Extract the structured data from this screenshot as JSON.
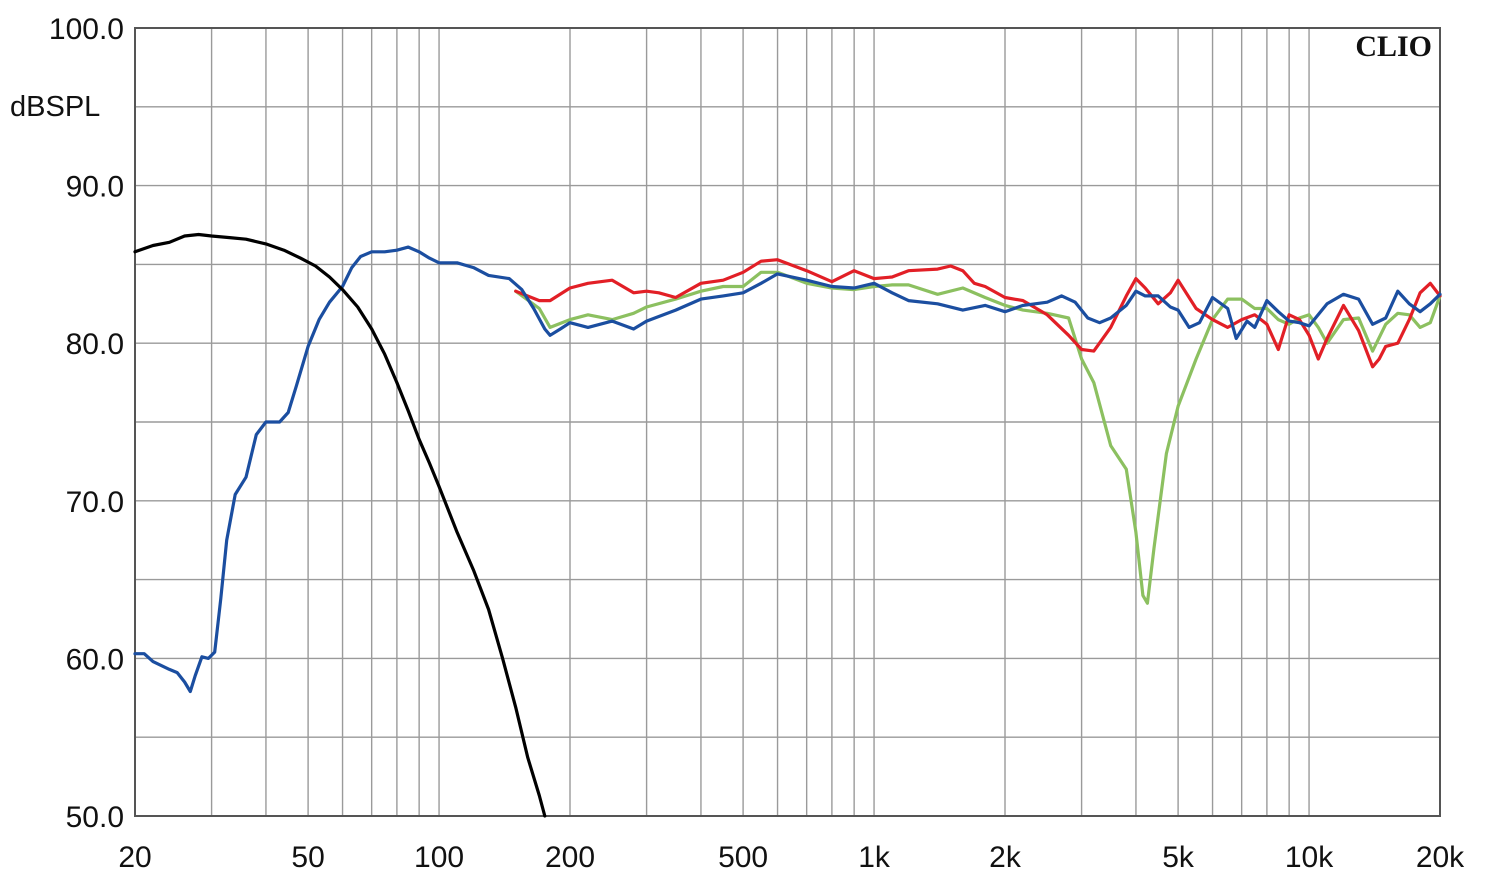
{
  "chart_data": {
    "type": "line",
    "title": "",
    "xlabel": "",
    "ylabel": "dBSPL",
    "brand": "CLIO",
    "xscale": "log",
    "xlim": [
      20,
      20000
    ],
    "ylim": [
      50,
      100
    ],
    "grid": true,
    "legend": "none",
    "x_ticks": [
      {
        "value": 20,
        "label": "20"
      },
      {
        "value": 50,
        "label": "50"
      },
      {
        "value": 100,
        "label": "100"
      },
      {
        "value": 200,
        "label": "200"
      },
      {
        "value": 500,
        "label": "500"
      },
      {
        "value": 1000,
        "label": "1k"
      },
      {
        "value": 2000,
        "label": "2k"
      },
      {
        "value": 5000,
        "label": "5k"
      },
      {
        "value": 10000,
        "label": "10k"
      },
      {
        "value": 20000,
        "label": "20k"
      }
    ],
    "y_ticks": [
      {
        "value": 100,
        "label": "100.0"
      },
      {
        "value": 90,
        "label": "90.0"
      },
      {
        "value": 80,
        "label": "80.0"
      },
      {
        "value": 70,
        "label": "70.0"
      },
      {
        "value": 60,
        "label": "60.0"
      },
      {
        "value": 50,
        "label": "50.0"
      }
    ],
    "series": [
      {
        "color": "#8cc060",
        "points": [
          [
            150,
            83.3
          ],
          [
            170,
            82.2
          ],
          [
            180,
            81.0
          ],
          [
            200,
            81.5
          ],
          [
            220,
            81.8
          ],
          [
            250,
            81.5
          ],
          [
            280,
            81.9
          ],
          [
            300,
            82.3
          ],
          [
            350,
            82.8
          ],
          [
            400,
            83.3
          ],
          [
            450,
            83.6
          ],
          [
            500,
            83.6
          ],
          [
            550,
            84.5
          ],
          [
            600,
            84.5
          ],
          [
            700,
            83.8
          ],
          [
            800,
            83.5
          ],
          [
            900,
            83.4
          ],
          [
            1000,
            83.6
          ],
          [
            1100,
            83.7
          ],
          [
            1200,
            83.7
          ],
          [
            1400,
            83.1
          ],
          [
            1600,
            83.5
          ],
          [
            1800,
            82.9
          ],
          [
            2000,
            82.4
          ],
          [
            2200,
            82.1
          ],
          [
            2500,
            81.9
          ],
          [
            2800,
            81.6
          ],
          [
            3000,
            79.0
          ],
          [
            3200,
            77.5
          ],
          [
            3500,
            73.5
          ],
          [
            3800,
            72.0
          ],
          [
            4000,
            68.0
          ],
          [
            4150,
            64.0
          ],
          [
            4250,
            63.5
          ],
          [
            4400,
            67.0
          ],
          [
            4700,
            73.0
          ],
          [
            5000,
            76.0
          ],
          [
            5500,
            79.0
          ],
          [
            6000,
            81.5
          ],
          [
            6500,
            82.8
          ],
          [
            7000,
            82.8
          ],
          [
            7500,
            82.2
          ],
          [
            8000,
            82.2
          ],
          [
            8500,
            81.5
          ],
          [
            9000,
            81.2
          ],
          [
            9500,
            81.6
          ],
          [
            10000,
            81.8
          ],
          [
            10500,
            81.0
          ],
          [
            11000,
            80.0
          ],
          [
            12000,
            81.5
          ],
          [
            13000,
            81.6
          ],
          [
            14000,
            79.5
          ],
          [
            15000,
            81.2
          ],
          [
            16000,
            81.9
          ],
          [
            17000,
            81.8
          ],
          [
            18000,
            81.0
          ],
          [
            19000,
            81.3
          ],
          [
            20000,
            83.0
          ]
        ]
      },
      {
        "color": "#e21f26",
        "points": [
          [
            150,
            83.3
          ],
          [
            170,
            82.7
          ],
          [
            180,
            82.7
          ],
          [
            200,
            83.5
          ],
          [
            220,
            83.8
          ],
          [
            250,
            84.0
          ],
          [
            280,
            83.2
          ],
          [
            300,
            83.3
          ],
          [
            320,
            83.2
          ],
          [
            350,
            82.9
          ],
          [
            400,
            83.8
          ],
          [
            450,
            84.0
          ],
          [
            500,
            84.5
          ],
          [
            550,
            85.2
          ],
          [
            600,
            85.3
          ],
          [
            700,
            84.6
          ],
          [
            800,
            83.9
          ],
          [
            900,
            84.6
          ],
          [
            1000,
            84.1
          ],
          [
            1100,
            84.2
          ],
          [
            1200,
            84.6
          ],
          [
            1400,
            84.7
          ],
          [
            1500,
            84.9
          ],
          [
            1600,
            84.6
          ],
          [
            1700,
            83.8
          ],
          [
            1800,
            83.6
          ],
          [
            2000,
            82.9
          ],
          [
            2200,
            82.7
          ],
          [
            2500,
            81.8
          ],
          [
            2800,
            80.5
          ],
          [
            3000,
            79.6
          ],
          [
            3200,
            79.5
          ],
          [
            3500,
            81.0
          ],
          [
            3800,
            83.0
          ],
          [
            4000,
            84.1
          ],
          [
            4200,
            83.5
          ],
          [
            4500,
            82.5
          ],
          [
            4800,
            83.2
          ],
          [
            5000,
            84.0
          ],
          [
            5500,
            82.2
          ],
          [
            6000,
            81.5
          ],
          [
            6500,
            81.0
          ],
          [
            7000,
            81.5
          ],
          [
            7500,
            81.8
          ],
          [
            8000,
            81.2
          ],
          [
            8500,
            79.6
          ],
          [
            9000,
            81.8
          ],
          [
            9500,
            81.5
          ],
          [
            10000,
            80.5
          ],
          [
            10500,
            79.0
          ],
          [
            11000,
            80.3
          ],
          [
            12000,
            82.4
          ],
          [
            13000,
            80.8
          ],
          [
            14000,
            78.5
          ],
          [
            14500,
            79.0
          ],
          [
            15000,
            79.8
          ],
          [
            16000,
            80.0
          ],
          [
            17000,
            81.5
          ],
          [
            18000,
            83.2
          ],
          [
            19000,
            83.8
          ],
          [
            20000,
            83.0
          ]
        ]
      },
      {
        "color": "#1b4ea0",
        "points": [
          [
            20,
            60.3
          ],
          [
            21,
            60.3
          ],
          [
            22,
            59.8
          ],
          [
            24,
            59.3
          ],
          [
            25,
            59.1
          ],
          [
            26,
            58.5
          ],
          [
            26.8,
            57.9
          ],
          [
            27.5,
            58.9
          ],
          [
            28.5,
            60.1
          ],
          [
            29.5,
            60.0
          ],
          [
            30.5,
            60.4
          ],
          [
            31.5,
            63.8
          ],
          [
            32.5,
            67.5
          ],
          [
            34,
            70.4
          ],
          [
            36,
            71.5
          ],
          [
            38,
            74.2
          ],
          [
            40,
            75.0
          ],
          [
            43,
            75.0
          ],
          [
            45,
            75.6
          ],
          [
            47,
            77.3
          ],
          [
            50,
            79.8
          ],
          [
            53,
            81.5
          ],
          [
            56,
            82.6
          ],
          [
            60,
            83.6
          ],
          [
            63,
            84.8
          ],
          [
            66,
            85.5
          ],
          [
            70,
            85.8
          ],
          [
            75,
            85.8
          ],
          [
            80,
            85.9
          ],
          [
            85,
            86.1
          ],
          [
            90,
            85.8
          ],
          [
            95,
            85.4
          ],
          [
            100,
            85.1
          ],
          [
            110,
            85.1
          ],
          [
            120,
            84.8
          ],
          [
            130,
            84.3
          ],
          [
            145,
            84.1
          ],
          [
            155,
            83.4
          ],
          [
            165,
            82.2
          ],
          [
            175,
            80.9
          ],
          [
            180,
            80.5
          ],
          [
            190,
            80.9
          ],
          [
            200,
            81.3
          ],
          [
            220,
            81.0
          ],
          [
            250,
            81.4
          ],
          [
            280,
            80.9
          ],
          [
            300,
            81.4
          ],
          [
            350,
            82.1
          ],
          [
            400,
            82.8
          ],
          [
            450,
            83.0
          ],
          [
            500,
            83.2
          ],
          [
            550,
            83.8
          ],
          [
            600,
            84.4
          ],
          [
            700,
            84.0
          ],
          [
            800,
            83.6
          ],
          [
            900,
            83.5
          ],
          [
            1000,
            83.8
          ],
          [
            1100,
            83.2
          ],
          [
            1200,
            82.7
          ],
          [
            1400,
            82.5
          ],
          [
            1600,
            82.1
          ],
          [
            1800,
            82.4
          ],
          [
            2000,
            82.0
          ],
          [
            2200,
            82.4
          ],
          [
            2500,
            82.6
          ],
          [
            2700,
            83.0
          ],
          [
            2900,
            82.6
          ],
          [
            3100,
            81.6
          ],
          [
            3300,
            81.3
          ],
          [
            3500,
            81.6
          ],
          [
            3800,
            82.4
          ],
          [
            4000,
            83.3
          ],
          [
            4200,
            83.0
          ],
          [
            4500,
            83.0
          ],
          [
            4800,
            82.3
          ],
          [
            5000,
            82.1
          ],
          [
            5300,
            81.0
          ],
          [
            5600,
            81.3
          ],
          [
            6000,
            82.9
          ],
          [
            6500,
            82.2
          ],
          [
            6800,
            80.3
          ],
          [
            7200,
            81.4
          ],
          [
            7500,
            81.0
          ],
          [
            8000,
            82.7
          ],
          [
            8500,
            82.0
          ],
          [
            9000,
            81.4
          ],
          [
            9500,
            81.3
          ],
          [
            10000,
            81.1
          ],
          [
            11000,
            82.5
          ],
          [
            12000,
            83.1
          ],
          [
            13000,
            82.8
          ],
          [
            14000,
            81.2
          ],
          [
            15000,
            81.6
          ],
          [
            16000,
            83.3
          ],
          [
            17000,
            82.5
          ],
          [
            18000,
            82.0
          ],
          [
            19000,
            82.5
          ],
          [
            20000,
            83.1
          ]
        ]
      },
      {
        "color": "#000000",
        "points": [
          [
            20,
            85.8
          ],
          [
            22,
            86.2
          ],
          [
            24,
            86.4
          ],
          [
            26,
            86.8
          ],
          [
            28,
            86.9
          ],
          [
            30,
            86.8
          ],
          [
            33,
            86.7
          ],
          [
            36,
            86.6
          ],
          [
            40,
            86.3
          ],
          [
            44,
            85.9
          ],
          [
            48,
            85.4
          ],
          [
            52,
            84.9
          ],
          [
            56,
            84.2
          ],
          [
            60,
            83.4
          ],
          [
            65,
            82.3
          ],
          [
            70,
            80.9
          ],
          [
            75,
            79.3
          ],
          [
            80,
            77.5
          ],
          [
            85,
            75.7
          ],
          [
            90,
            73.9
          ],
          [
            95,
            72.4
          ],
          [
            100,
            70.9
          ],
          [
            110,
            68.0
          ],
          [
            120,
            65.6
          ],
          [
            130,
            63.1
          ],
          [
            140,
            60.0
          ],
          [
            150,
            56.9
          ],
          [
            160,
            53.7
          ],
          [
            170,
            51.3
          ],
          [
            175,
            50.0
          ]
        ]
      }
    ]
  }
}
